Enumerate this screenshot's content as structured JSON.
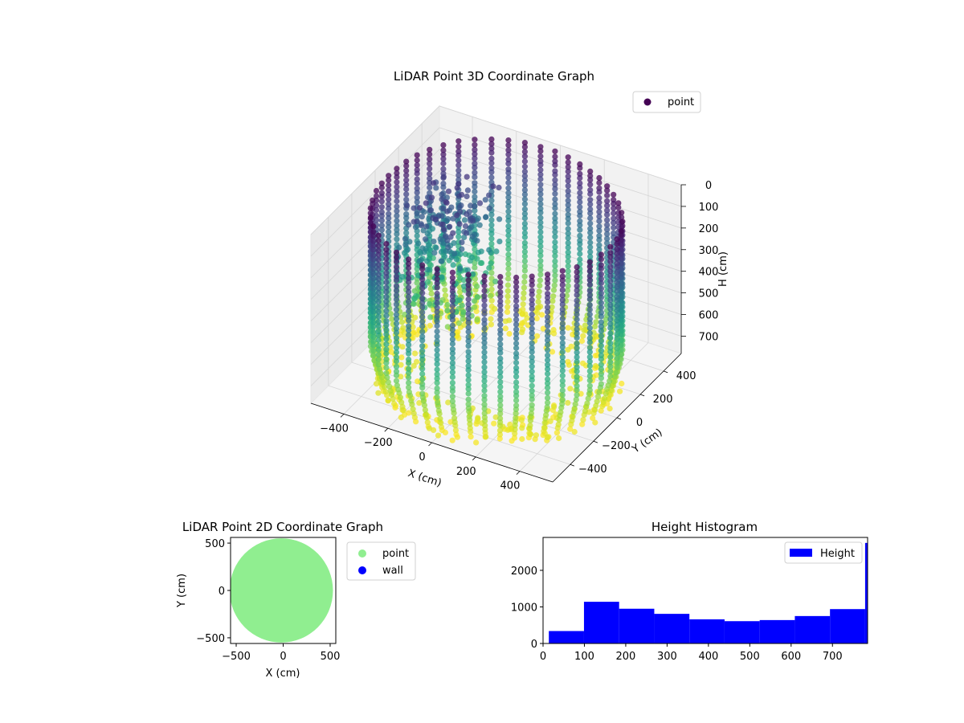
{
  "chart_data": [
    {
      "type": "scatter",
      "projection": "3d",
      "title": "LiDAR Point 3D Coordinate Graph",
      "xlabel": "X (cm)",
      "ylabel": "Y (cm)",
      "zlabel": "H (cm)",
      "xlim": [
        -550,
        550
      ],
      "ylim": [
        -550,
        550
      ],
      "zlim": [
        0,
        780
      ],
      "z_inverted": true,
      "xticks": [
        -400,
        -200,
        0,
        200,
        400
      ],
      "yticks": [
        -400,
        -200,
        0,
        200,
        400
      ],
      "zticks": [
        0,
        100,
        200,
        300,
        400,
        500,
        600,
        700
      ],
      "xtick_labels": [
        "−400",
        "−200",
        "0",
        "200",
        "400"
      ],
      "ytick_labels": [
        "−400",
        "−200",
        "0",
        "200",
        "400"
      ],
      "ztick_labels": [
        "0",
        "100",
        "200",
        "300",
        "400",
        "500",
        "600",
        "700"
      ],
      "colormap": "viridis",
      "color_by": "H (cm)",
      "series": [
        {
          "name": "point",
          "shape": "cylindrical wall scan, vertical scan lines every ~7.5°, H from 0 to ~780 cm, interior clutter points in the far-left quadrant",
          "wall_radius_cm": 520
        }
      ],
      "legend": {
        "position": "top-right",
        "entries": [
          "point"
        ]
      },
      "grid": true
    },
    {
      "type": "scatter",
      "title": "LiDAR Point 2D Coordinate Graph",
      "xlabel": "X (cm)",
      "ylabel": "Y (cm)",
      "xlim": [
        -560,
        560
      ],
      "ylim": [
        -560,
        560
      ],
      "xticks": [
        -500,
        0,
        500
      ],
      "yticks": [
        -500,
        0,
        500
      ],
      "xtick_labels": [
        "−500",
        "0",
        "500"
      ],
      "ytick_labels": [
        "−500",
        "0",
        "500"
      ],
      "series": [
        {
          "name": "point",
          "color": "#90ee90",
          "shape": "filled disc, radius ~550 cm, clipped at x≈-560 and y=±560"
        },
        {
          "name": "wall",
          "color": "#0000ff"
        }
      ],
      "legend": {
        "position": "outside-right",
        "entries": [
          "point",
          "wall"
        ]
      },
      "grid": false
    },
    {
      "type": "bar",
      "subtype": "histogram",
      "title": "Height Histogram",
      "xlabel": "",
      "ylabel": "",
      "xlim": [
        0,
        785
      ],
      "ylim": [
        0,
        2900
      ],
      "xticks": [
        0,
        100,
        200,
        300,
        400,
        500,
        600,
        700
      ],
      "yticks": [
        0,
        1000,
        2000
      ],
      "xtick_labels": [
        "0",
        "100",
        "200",
        "300",
        "400",
        "500",
        "600",
        "700"
      ],
      "ytick_labels": [
        "0",
        "1000",
        "2000"
      ],
      "bins": [
        [
          14,
          99
        ],
        [
          99,
          184
        ],
        [
          184,
          269
        ],
        [
          269,
          354
        ],
        [
          354,
          439
        ],
        [
          439,
          524
        ],
        [
          524,
          609
        ],
        [
          609,
          694
        ],
        [
          694,
          779
        ],
        [
          779,
          785
        ]
      ],
      "values": [
        340,
        1140,
        950,
        810,
        660,
        610,
        640,
        750,
        940,
        2750
      ],
      "series": [
        {
          "name": "Height",
          "color": "#0000ff",
          "values": [
            340,
            1140,
            950,
            810,
            660,
            610,
            640,
            750,
            940,
            2750
          ]
        }
      ],
      "legend": {
        "position": "top-right",
        "entries": [
          "Height"
        ]
      },
      "grid": false
    }
  ]
}
